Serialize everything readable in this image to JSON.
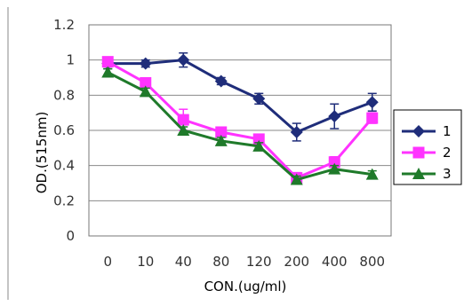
{
  "chart_data": {
    "type": "line",
    "title": "",
    "xlabel": "CON.(ug/ml)",
    "ylabel": "OD.(515nm)",
    "categories": [
      "0",
      "10",
      "40",
      "80",
      "120",
      "200",
      "400",
      "800"
    ],
    "ylim": [
      0,
      1.2
    ],
    "yticks": [
      "0",
      "0.2",
      "0.4",
      "0.6",
      "0.8",
      "1",
      "1.2"
    ],
    "grid": true,
    "legend_position": "right",
    "series": [
      {
        "name": "1",
        "color": "#1f2d7a",
        "marker": "diamond",
        "values": [
          0.98,
          0.98,
          1.0,
          0.88,
          0.78,
          0.59,
          0.68,
          0.76
        ],
        "errors": [
          0.03,
          0.02,
          0.04,
          0.02,
          0.03,
          0.05,
          0.07,
          0.05
        ]
      },
      {
        "name": "2",
        "color": "#ff33ff",
        "marker": "square",
        "values": [
          0.99,
          0.87,
          0.66,
          0.59,
          0.55,
          0.33,
          0.42,
          0.67
        ],
        "errors": [
          0.02,
          0.02,
          0.06,
          0.02,
          0.02,
          0.03,
          0.03,
          0.03
        ]
      },
      {
        "name": "3",
        "color": "#1f7a2a",
        "marker": "triangle",
        "values": [
          0.93,
          0.82,
          0.6,
          0.54,
          0.51,
          0.32,
          0.38,
          0.35
        ],
        "errors": [
          0.02,
          0.02,
          0.02,
          0.02,
          0.02,
          0.02,
          0.02,
          0.02
        ]
      }
    ]
  }
}
